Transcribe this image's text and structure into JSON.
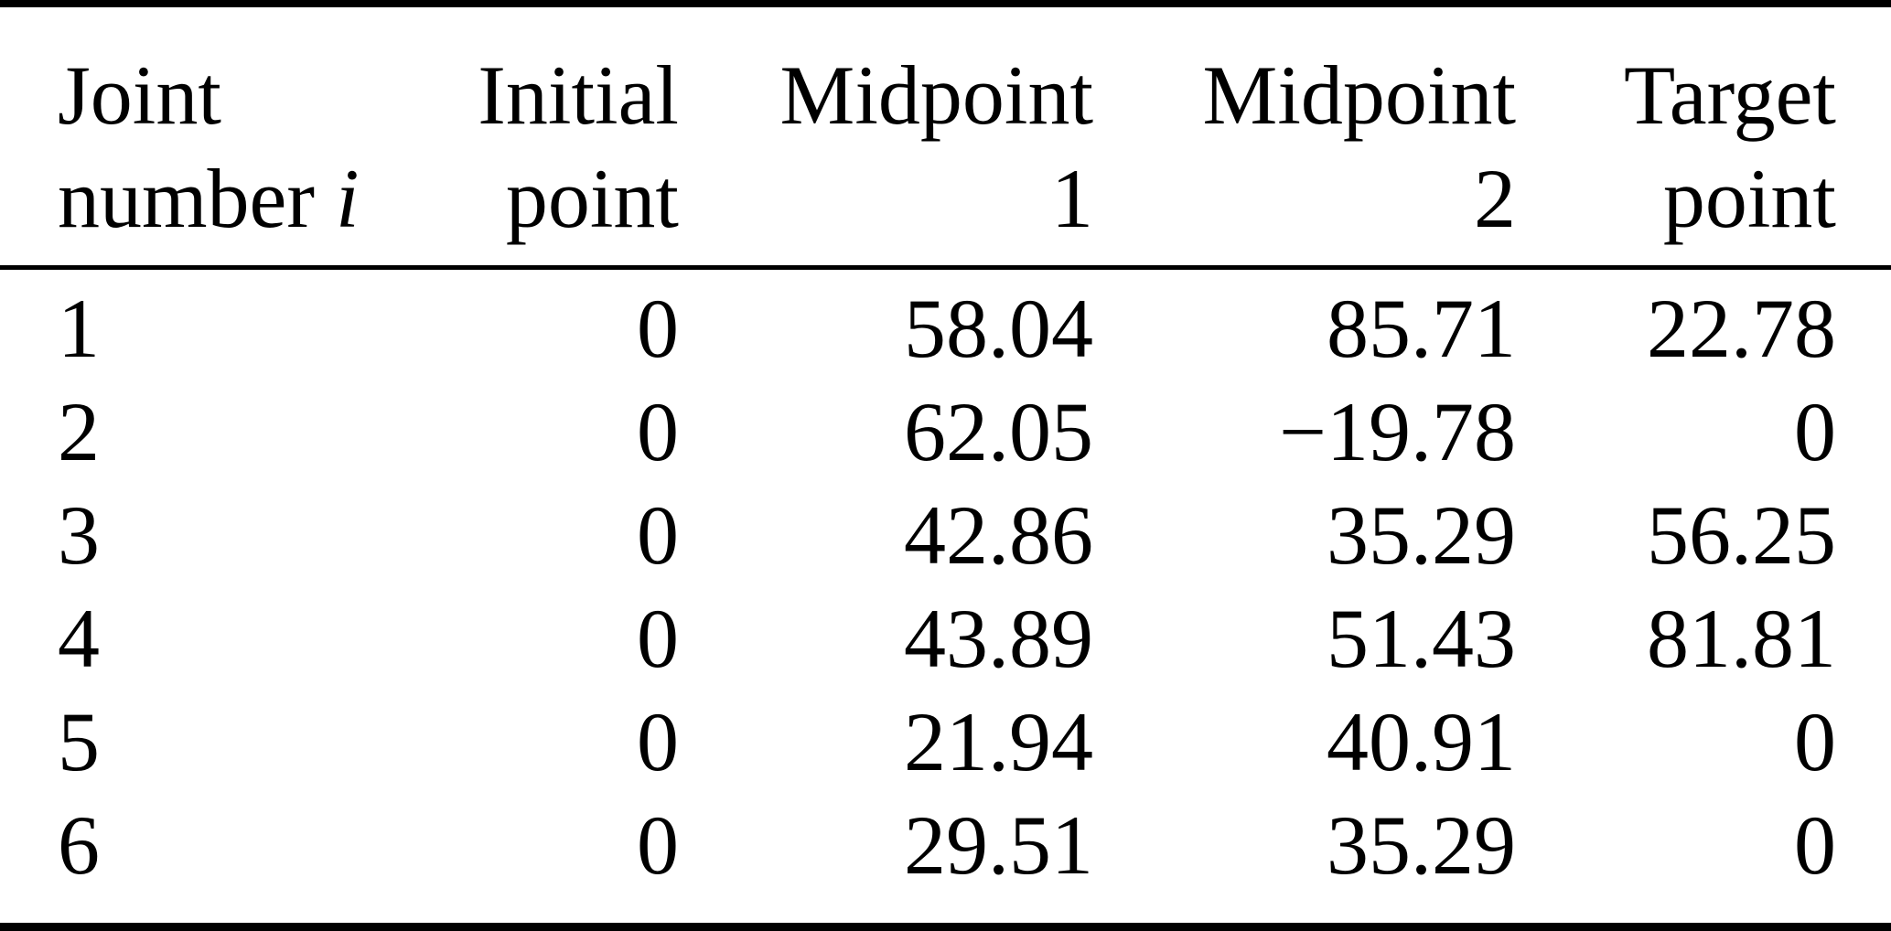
{
  "table": {
    "header": {
      "c1": {
        "line1": "Joint",
        "line2_text": "number ",
        "line2_var": "i"
      },
      "c2": {
        "line1": "Initial",
        "line2": "point"
      },
      "c3": {
        "line1": "Midpoint",
        "line2": "1"
      },
      "c4": {
        "line1": "Midpoint",
        "line2": "2"
      },
      "c5": {
        "line1": "Target",
        "line2": "point"
      }
    },
    "rows": [
      [
        "1",
        "0",
        "58.04",
        "85.71",
        "22.78"
      ],
      [
        "2",
        "0",
        "62.05",
        "−19.78",
        "0"
      ],
      [
        "3",
        "0",
        "42.86",
        "35.29",
        "56.25"
      ],
      [
        "4",
        "0",
        "43.89",
        "51.43",
        "81.81"
      ],
      [
        "5",
        "0",
        "21.94",
        "40.91",
        "0"
      ],
      [
        "6",
        "0",
        "29.51",
        "35.29",
        "0"
      ]
    ],
    "colors": {
      "text": "#000000",
      "background": "#ffffff",
      "rule": "#000000"
    }
  }
}
